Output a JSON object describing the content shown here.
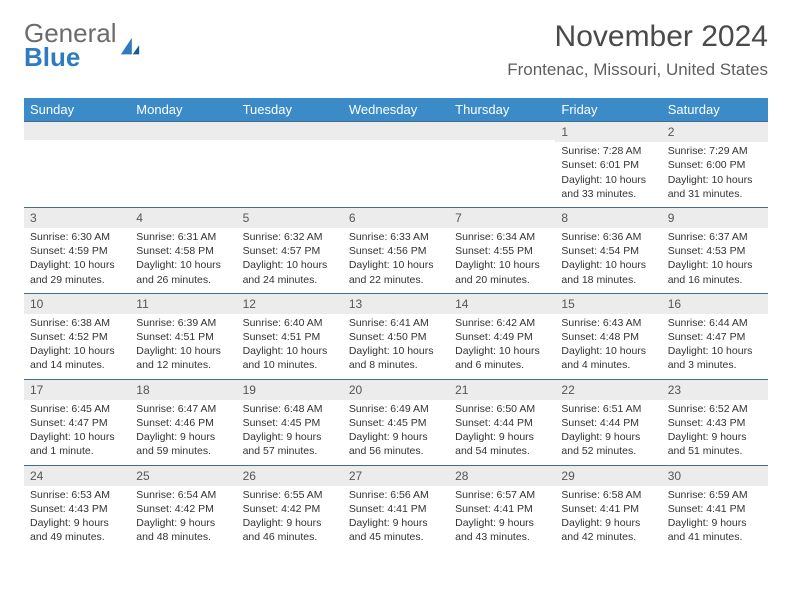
{
  "logo": {
    "general": "General",
    "blue": "Blue"
  },
  "title": "November 2024",
  "location": "Frontenac, Missouri, United States",
  "colors": {
    "header_bg": "#3b8bc9",
    "header_text": "#ffffff",
    "daynum_bg": "#ececec",
    "border": "#4a6a8a",
    "body_text": "#333333",
    "logo_gray": "#6b6b6b",
    "logo_blue": "#2f7bbf"
  },
  "weekdays": [
    "Sunday",
    "Monday",
    "Tuesday",
    "Wednesday",
    "Thursday",
    "Friday",
    "Saturday"
  ],
  "weeks": [
    [
      {
        "n": "",
        "sr": "",
        "ss": "",
        "dl": ""
      },
      {
        "n": "",
        "sr": "",
        "ss": "",
        "dl": ""
      },
      {
        "n": "",
        "sr": "",
        "ss": "",
        "dl": ""
      },
      {
        "n": "",
        "sr": "",
        "ss": "",
        "dl": ""
      },
      {
        "n": "",
        "sr": "",
        "ss": "",
        "dl": ""
      },
      {
        "n": "1",
        "sr": "Sunrise: 7:28 AM",
        "ss": "Sunset: 6:01 PM",
        "dl": "Daylight: 10 hours and 33 minutes."
      },
      {
        "n": "2",
        "sr": "Sunrise: 7:29 AM",
        "ss": "Sunset: 6:00 PM",
        "dl": "Daylight: 10 hours and 31 minutes."
      }
    ],
    [
      {
        "n": "3",
        "sr": "Sunrise: 6:30 AM",
        "ss": "Sunset: 4:59 PM",
        "dl": "Daylight: 10 hours and 29 minutes."
      },
      {
        "n": "4",
        "sr": "Sunrise: 6:31 AM",
        "ss": "Sunset: 4:58 PM",
        "dl": "Daylight: 10 hours and 26 minutes."
      },
      {
        "n": "5",
        "sr": "Sunrise: 6:32 AM",
        "ss": "Sunset: 4:57 PM",
        "dl": "Daylight: 10 hours and 24 minutes."
      },
      {
        "n": "6",
        "sr": "Sunrise: 6:33 AM",
        "ss": "Sunset: 4:56 PM",
        "dl": "Daylight: 10 hours and 22 minutes."
      },
      {
        "n": "7",
        "sr": "Sunrise: 6:34 AM",
        "ss": "Sunset: 4:55 PM",
        "dl": "Daylight: 10 hours and 20 minutes."
      },
      {
        "n": "8",
        "sr": "Sunrise: 6:36 AM",
        "ss": "Sunset: 4:54 PM",
        "dl": "Daylight: 10 hours and 18 minutes."
      },
      {
        "n": "9",
        "sr": "Sunrise: 6:37 AM",
        "ss": "Sunset: 4:53 PM",
        "dl": "Daylight: 10 hours and 16 minutes."
      }
    ],
    [
      {
        "n": "10",
        "sr": "Sunrise: 6:38 AM",
        "ss": "Sunset: 4:52 PM",
        "dl": "Daylight: 10 hours and 14 minutes."
      },
      {
        "n": "11",
        "sr": "Sunrise: 6:39 AM",
        "ss": "Sunset: 4:51 PM",
        "dl": "Daylight: 10 hours and 12 minutes."
      },
      {
        "n": "12",
        "sr": "Sunrise: 6:40 AM",
        "ss": "Sunset: 4:51 PM",
        "dl": "Daylight: 10 hours and 10 minutes."
      },
      {
        "n": "13",
        "sr": "Sunrise: 6:41 AM",
        "ss": "Sunset: 4:50 PM",
        "dl": "Daylight: 10 hours and 8 minutes."
      },
      {
        "n": "14",
        "sr": "Sunrise: 6:42 AM",
        "ss": "Sunset: 4:49 PM",
        "dl": "Daylight: 10 hours and 6 minutes."
      },
      {
        "n": "15",
        "sr": "Sunrise: 6:43 AM",
        "ss": "Sunset: 4:48 PM",
        "dl": "Daylight: 10 hours and 4 minutes."
      },
      {
        "n": "16",
        "sr": "Sunrise: 6:44 AM",
        "ss": "Sunset: 4:47 PM",
        "dl": "Daylight: 10 hours and 3 minutes."
      }
    ],
    [
      {
        "n": "17",
        "sr": "Sunrise: 6:45 AM",
        "ss": "Sunset: 4:47 PM",
        "dl": "Daylight: 10 hours and 1 minute."
      },
      {
        "n": "18",
        "sr": "Sunrise: 6:47 AM",
        "ss": "Sunset: 4:46 PM",
        "dl": "Daylight: 9 hours and 59 minutes."
      },
      {
        "n": "19",
        "sr": "Sunrise: 6:48 AM",
        "ss": "Sunset: 4:45 PM",
        "dl": "Daylight: 9 hours and 57 minutes."
      },
      {
        "n": "20",
        "sr": "Sunrise: 6:49 AM",
        "ss": "Sunset: 4:45 PM",
        "dl": "Daylight: 9 hours and 56 minutes."
      },
      {
        "n": "21",
        "sr": "Sunrise: 6:50 AM",
        "ss": "Sunset: 4:44 PM",
        "dl": "Daylight: 9 hours and 54 minutes."
      },
      {
        "n": "22",
        "sr": "Sunrise: 6:51 AM",
        "ss": "Sunset: 4:44 PM",
        "dl": "Daylight: 9 hours and 52 minutes."
      },
      {
        "n": "23",
        "sr": "Sunrise: 6:52 AM",
        "ss": "Sunset: 4:43 PM",
        "dl": "Daylight: 9 hours and 51 minutes."
      }
    ],
    [
      {
        "n": "24",
        "sr": "Sunrise: 6:53 AM",
        "ss": "Sunset: 4:43 PM",
        "dl": "Daylight: 9 hours and 49 minutes."
      },
      {
        "n": "25",
        "sr": "Sunrise: 6:54 AM",
        "ss": "Sunset: 4:42 PM",
        "dl": "Daylight: 9 hours and 48 minutes."
      },
      {
        "n": "26",
        "sr": "Sunrise: 6:55 AM",
        "ss": "Sunset: 4:42 PM",
        "dl": "Daylight: 9 hours and 46 minutes."
      },
      {
        "n": "27",
        "sr": "Sunrise: 6:56 AM",
        "ss": "Sunset: 4:41 PM",
        "dl": "Daylight: 9 hours and 45 minutes."
      },
      {
        "n": "28",
        "sr": "Sunrise: 6:57 AM",
        "ss": "Sunset: 4:41 PM",
        "dl": "Daylight: 9 hours and 43 minutes."
      },
      {
        "n": "29",
        "sr": "Sunrise: 6:58 AM",
        "ss": "Sunset: 4:41 PM",
        "dl": "Daylight: 9 hours and 42 minutes."
      },
      {
        "n": "30",
        "sr": "Sunrise: 6:59 AM",
        "ss": "Sunset: 4:41 PM",
        "dl": "Daylight: 9 hours and 41 minutes."
      }
    ]
  ]
}
